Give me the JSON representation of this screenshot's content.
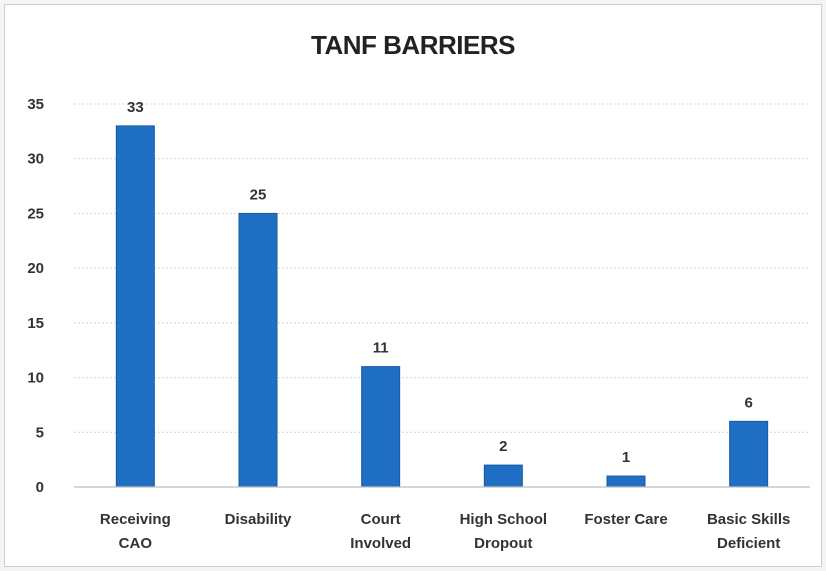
{
  "chart_data": {
    "type": "bar",
    "title": "TANF BARRIERS",
    "categories": [
      [
        "Receiving",
        "CAO"
      ],
      [
        "Disability"
      ],
      [
        "Court",
        "Involved"
      ],
      [
        "High School",
        "Dropout"
      ],
      [
        "Foster Care"
      ],
      [
        "Basic Skills",
        "Deficient"
      ]
    ],
    "values": [
      33,
      25,
      11,
      2,
      1,
      6
    ],
    "ylim": [
      0,
      35
    ],
    "yticks": [
      0,
      5,
      10,
      15,
      20,
      25,
      30,
      35
    ],
    "grid": true,
    "legend": "none",
    "bar_color": "#1f6fc4",
    "bar_edge_color": "#155a9e"
  }
}
